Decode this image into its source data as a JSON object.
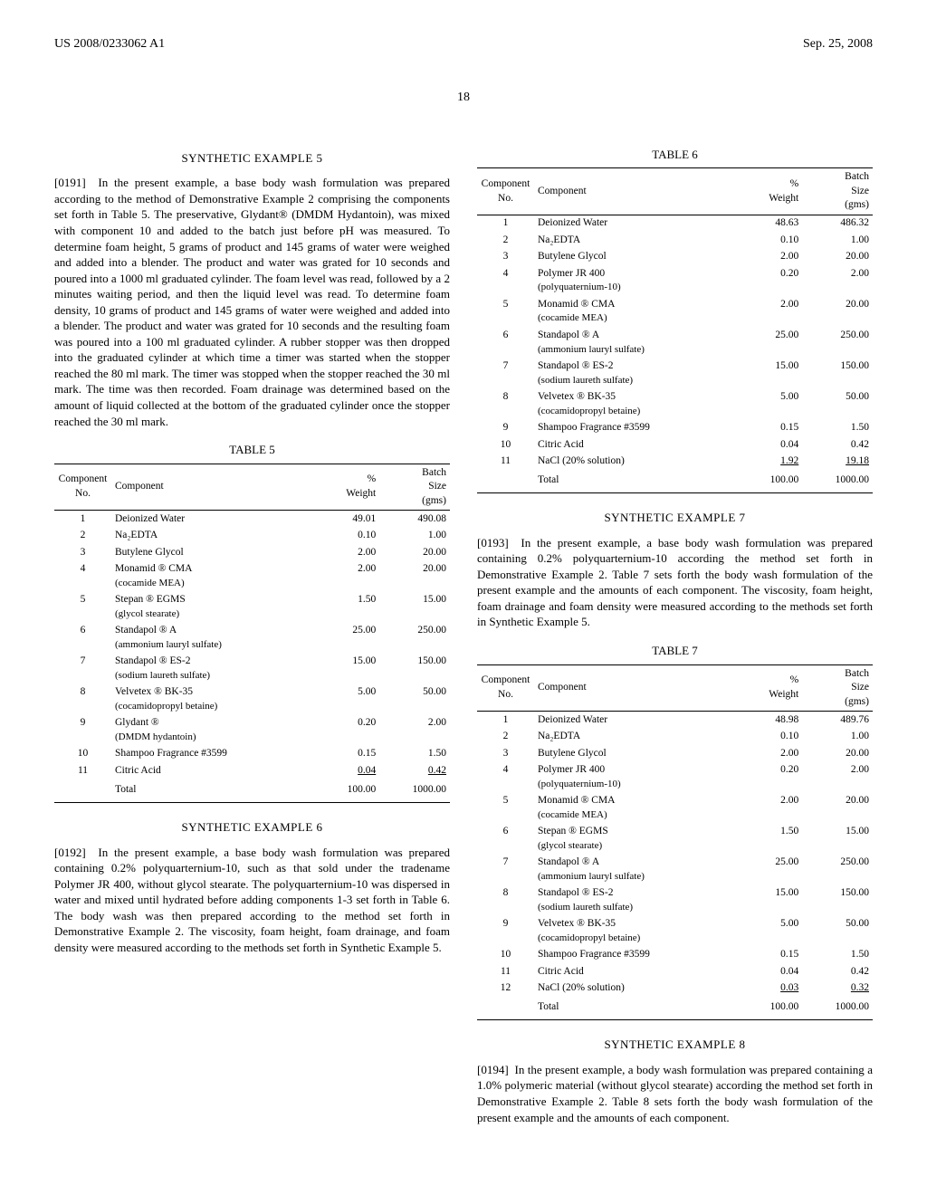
{
  "header": {
    "left": "US 2008/0233062 A1",
    "right": "Sep. 25, 2008"
  },
  "page_number": "18",
  "left_col": {
    "sec5_title": "SYNTHETIC EXAMPLE 5",
    "p0191_num": "[0191]",
    "p0191": "In the present example, a base body wash formulation was prepared according to the method of Demonstrative Example 2 comprising the components set forth in Table 5. The preservative, Glydant® (DMDM Hydantoin), was mixed with component 10 and added to the batch just before pH was measured. To determine foam height, 5 grams of product and 145 grams of water were weighed and added into a blender. The product and water was grated for 10 seconds and poured into a 1000 ml graduated cylinder. The foam level was read, followed by a 2 minutes waiting period, and then the liquid level was read. To determine foam density, 10 grams of product and 145 grams of water were weighed and added into a blender. The product and water was grated for 10 seconds and the resulting foam was poured into a 100 ml graduated cylinder. A rubber stopper was then dropped into the graduated cylinder at which time a timer was started when the stopper reached the 80 ml mark. The timer was stopped when the stopper reached the 30 ml mark. The time was then recorded. Foam drainage was determined based on the amount of liquid collected at the bottom of the graduated cylinder once the stopper reached the 30 ml mark.",
    "sec6_title": "SYNTHETIC EXAMPLE 6",
    "p0192_num": "[0192]",
    "p0192": "In the present example, a base body wash formulation was prepared containing 0.2% polyquarternium-10, such as that sold under the tradename Polymer JR 400, without glycol stearate. The polyquarternium-10 was dispersed in water and mixed until hydrated before adding components 1-3 set forth in Table 6. The body wash was then prepared according to the method set forth in Demonstrative Example 2. The viscosity, foam height, foam drainage, and foam density were measured according to the methods set forth in Synthetic Example 5."
  },
  "right_col": {
    "sec7_title": "SYNTHETIC EXAMPLE 7",
    "p0193_num": "[0193]",
    "p0193": "In the present example, a base body wash formulation was prepared containing 0.2% polyquarternium-10 according the method set forth in Demonstrative Example 2. Table 7 sets forth the body wash formulation of the present example and the amounts of each component. The viscosity, foam height, foam drainage and foam density were measured according to the methods set forth in Synthetic Example 5.",
    "sec8_title": "SYNTHETIC EXAMPLE 8",
    "p0194_num": "[0194]",
    "p0194": "In the present example, a body wash formulation was prepared containing a 1.0% polymeric material (without glycol stearate) according the method set forth in Demonstrative Example 2. Table 8 sets forth the body wash formulation of the present example and the amounts of each component."
  },
  "tables": {
    "t5": {
      "label": "TABLE 5",
      "head": {
        "c1": "Component\nNo.",
        "c2": "Component",
        "c3": "%\nWeight",
        "c4": "Batch\nSize\n(gms)"
      },
      "rows": [
        {
          "n": "1",
          "name": "Deionized Water",
          "sub": "",
          "pct": "49.01",
          "bs": "490.08"
        },
        {
          "n": "2",
          "name": "Na₂EDTA",
          "sub": "",
          "pct": "0.10",
          "bs": "1.00"
        },
        {
          "n": "3",
          "name": "Butylene Glycol",
          "sub": "",
          "pct": "2.00",
          "bs": "20.00"
        },
        {
          "n": "4",
          "name": "Monamid ® CMA",
          "sub": "(cocamide MEA)",
          "pct": "2.00",
          "bs": "20.00"
        },
        {
          "n": "5",
          "name": "Stepan ® EGMS",
          "sub": "(glycol stearate)",
          "pct": "1.50",
          "bs": "15.00"
        },
        {
          "n": "6",
          "name": "Standapol ® A",
          "sub": "(ammonium lauryl sulfate)",
          "pct": "25.00",
          "bs": "250.00"
        },
        {
          "n": "7",
          "name": "Standapol ® ES-2",
          "sub": "(sodium laureth sulfate)",
          "pct": "15.00",
          "bs": "150.00"
        },
        {
          "n": "8",
          "name": "Velvetex ® BK-35",
          "sub": "(cocamidopropyl betaine)",
          "pct": "5.00",
          "bs": "50.00"
        },
        {
          "n": "9",
          "name": "Glydant ®",
          "sub": "(DMDM hydantoin)",
          "pct": "0.20",
          "bs": "2.00"
        },
        {
          "n": "10",
          "name": "Shampoo Fragrance #3599",
          "sub": "",
          "pct": "0.15",
          "bs": "1.50"
        },
        {
          "n": "11",
          "name": "Citric Acid",
          "sub": "",
          "pct": "0.04",
          "bs": "0.42"
        }
      ],
      "total": {
        "label": "Total",
        "pct": "100.00",
        "bs": "1000.00"
      }
    },
    "t6": {
      "label": "TABLE 6",
      "head": {
        "c1": "Component\nNo.",
        "c2": "Component",
        "c3": "%\nWeight",
        "c4": "Batch\nSize\n(gms)"
      },
      "rows": [
        {
          "n": "1",
          "name": "Deionized Water",
          "sub": "",
          "pct": "48.63",
          "bs": "486.32"
        },
        {
          "n": "2",
          "name": "Na₂EDTA",
          "sub": "",
          "pct": "0.10",
          "bs": "1.00"
        },
        {
          "n": "3",
          "name": "Butylene Glycol",
          "sub": "",
          "pct": "2.00",
          "bs": "20.00"
        },
        {
          "n": "4",
          "name": "Polymer JR 400",
          "sub": "(polyquaternium-10)",
          "pct": "0.20",
          "bs": "2.00"
        },
        {
          "n": "5",
          "name": "Monamid ® CMA",
          "sub": "(cocamide MEA)",
          "pct": "2.00",
          "bs": "20.00"
        },
        {
          "n": "6",
          "name": "Standapol ® A",
          "sub": "(ammonium lauryl sulfate)",
          "pct": "25.00",
          "bs": "250.00"
        },
        {
          "n": "7",
          "name": "Standapol ® ES-2",
          "sub": "(sodium laureth sulfate)",
          "pct": "15.00",
          "bs": "150.00"
        },
        {
          "n": "8",
          "name": "Velvetex ® BK-35",
          "sub": "(cocamidopropyl betaine)",
          "pct": "5.00",
          "bs": "50.00"
        },
        {
          "n": "9",
          "name": "Shampoo Fragrance #3599",
          "sub": "",
          "pct": "0.15",
          "bs": "1.50"
        },
        {
          "n": "10",
          "name": "Citric Acid",
          "sub": "",
          "pct": "0.04",
          "bs": "0.42"
        },
        {
          "n": "11",
          "name": "NaCl (20% solution)",
          "sub": "",
          "pct": "1.92",
          "bs": "19.18"
        }
      ],
      "total": {
        "label": "Total",
        "pct": "100.00",
        "bs": "1000.00"
      }
    },
    "t7": {
      "label": "TABLE 7",
      "head": {
        "c1": "Component\nNo.",
        "c2": "Component",
        "c3": "%\nWeight",
        "c4": "Batch\nSize\n(gms)"
      },
      "rows": [
        {
          "n": "1",
          "name": "Deionized Water",
          "sub": "",
          "pct": "48.98",
          "bs": "489.76"
        },
        {
          "n": "2",
          "name": "Na₂EDTA",
          "sub": "",
          "pct": "0.10",
          "bs": "1.00"
        },
        {
          "n": "3",
          "name": "Butylene Glycol",
          "sub": "",
          "pct": "2.00",
          "bs": "20.00"
        },
        {
          "n": "4",
          "name": "Polymer JR 400",
          "sub": "(polyquaternium-10)",
          "pct": "0.20",
          "bs": "2.00"
        },
        {
          "n": "5",
          "name": "Monamid ® CMA",
          "sub": "(cocamide MEA)",
          "pct": "2.00",
          "bs": "20.00"
        },
        {
          "n": "6",
          "name": "Stepan ® EGMS",
          "sub": "(glycol stearate)",
          "pct": "1.50",
          "bs": "15.00"
        },
        {
          "n": "7",
          "name": "Standapol ® A",
          "sub": "(ammonium lauryl sulfate)",
          "pct": "25.00",
          "bs": "250.00"
        },
        {
          "n": "8",
          "name": "Standapol ® ES-2",
          "sub": "(sodium laureth sulfate)",
          "pct": "15.00",
          "bs": "150.00"
        },
        {
          "n": "9",
          "name": "Velvetex ® BK-35",
          "sub": "(cocamidopropyl betaine)",
          "pct": "5.00",
          "bs": "50.00"
        },
        {
          "n": "10",
          "name": "Shampoo Fragrance #3599",
          "sub": "",
          "pct": "0.15",
          "bs": "1.50"
        },
        {
          "n": "11",
          "name": "Citric Acid",
          "sub": "",
          "pct": "0.04",
          "bs": "0.42"
        },
        {
          "n": "12",
          "name": "NaCl (20% solution)",
          "sub": "",
          "pct": "0.03",
          "bs": "0.32"
        }
      ],
      "total": {
        "label": "Total",
        "pct": "100.00",
        "bs": "1000.00"
      }
    }
  }
}
